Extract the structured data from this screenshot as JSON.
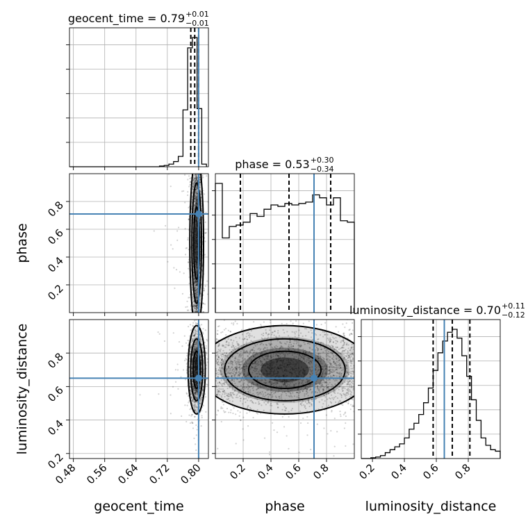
{
  "chart_data": {
    "type": "corner",
    "colors": {
      "truth": "#4682b4",
      "hist": "#000000",
      "grid": "#b0b0b0"
    },
    "parameters": [
      "geocent_time",
      "phase",
      "luminosity_distance"
    ],
    "truths": {
      "geocent_time": 0.8,
      "phase": 0.71,
      "luminosity_distance": 0.65
    },
    "grid": true,
    "diagonal": [
      {
        "param": "geocent_time",
        "title_main": "geocent_time = 0.79",
        "title_sup": "+0.01",
        "title_sub": "−0.01",
        "range": [
          0.47,
          0.825
        ],
        "quantiles": [
          0.78,
          0.79,
          0.8
        ],
        "bins": [
          0.7,
          0.712,
          0.724,
          0.736,
          0.748,
          0.76,
          0.772,
          0.784,
          0.796,
          0.808,
          0.82
        ],
        "counts": [
          0.005,
          0.01,
          0.02,
          0.04,
          0.08,
          0.44,
          0.92,
          1.0,
          0.45,
          0.02
        ],
        "xticks": [
          0.48,
          0.56,
          0.64,
          0.72,
          0.8
        ],
        "show_xticks": false
      },
      {
        "param": "phase",
        "title_main": "phase = 0.53",
        "title_sup": "+0.30",
        "title_sub": "−0.34",
        "range": [
          0.0,
          1.0
        ],
        "quantiles": [
          0.18,
          0.53,
          0.83
        ],
        "bins": [
          0.0,
          0.05,
          0.1,
          0.15,
          0.2,
          0.25,
          0.3,
          0.35,
          0.4,
          0.45,
          0.5,
          0.55,
          0.6,
          0.65,
          0.7,
          0.75,
          0.8,
          0.85,
          0.9,
          0.95,
          1.0
        ],
        "counts": [
          0.9,
          0.52,
          0.6,
          0.61,
          0.63,
          0.69,
          0.67,
          0.72,
          0.75,
          0.74,
          0.76,
          0.75,
          0.76,
          0.77,
          0.82,
          0.8,
          0.75,
          0.8,
          0.64,
          0.63
        ],
        "xticks": [
          0.2,
          0.4,
          0.6,
          0.8
        ],
        "show_xticks": false
      },
      {
        "param": "luminosity_distance",
        "title_main": "luminosity_distance = 0.70",
        "title_sup": "+0.11",
        "title_sub": "−0.12",
        "range": [
          0.13,
          1.0
        ],
        "quantiles": [
          0.58,
          0.7,
          0.81
        ],
        "bins": [
          0.13,
          0.16,
          0.19,
          0.22,
          0.25,
          0.28,
          0.31,
          0.34,
          0.37,
          0.4,
          0.43,
          0.46,
          0.49,
          0.52,
          0.55,
          0.58,
          0.61,
          0.64,
          0.67,
          0.7,
          0.73,
          0.76,
          0.79,
          0.82,
          0.85,
          0.88,
          0.91,
          0.94,
          0.97,
          1.0
        ],
        "counts": [
          0.0,
          0.0,
          0.005,
          0.01,
          0.02,
          0.04,
          0.06,
          0.08,
          0.1,
          0.14,
          0.2,
          0.24,
          0.3,
          0.38,
          0.48,
          0.6,
          0.72,
          0.8,
          0.86,
          0.88,
          0.82,
          0.7,
          0.56,
          0.4,
          0.26,
          0.14,
          0.09,
          0.06,
          0.05
        ],
        "xticks": [
          0.2,
          0.4,
          0.6,
          0.8
        ],
        "show_xticks": true,
        "xlabel": "luminosity_distance"
      }
    ],
    "panels": [
      {
        "id": "phase-vs-geocent_time",
        "x_param": "geocent_time",
        "y_param": "phase",
        "xrange": [
          0.47,
          0.825
        ],
        "yrange": [
          0.0,
          1.0
        ],
        "yticks": [
          0.2,
          0.4,
          0.6,
          0.8
        ],
        "ylabel": "phase",
        "show_xticks": false,
        "density_center": [
          0.795,
          0.5
        ],
        "density_spread": [
          0.008,
          0.6
        ]
      },
      {
        "id": "luminosity_distance-vs-geocent_time",
        "x_param": "geocent_time",
        "y_param": "luminosity_distance",
        "xrange": [
          0.47,
          0.825
        ],
        "yrange": [
          0.17,
          1.0
        ],
        "xticks": [
          0.48,
          0.56,
          0.64,
          0.72,
          0.8
        ],
        "yticks": [
          0.2,
          0.4,
          0.6,
          0.8
        ],
        "xlabel": "geocent_time",
        "ylabel": "luminosity_distance",
        "density_center": [
          0.795,
          0.7
        ],
        "density_spread": [
          0.01,
          0.12
        ]
      },
      {
        "id": "luminosity_distance-vs-phase",
        "x_param": "phase",
        "y_param": "luminosity_distance",
        "xrange": [
          0.0,
          1.0
        ],
        "yrange": [
          0.17,
          1.0
        ],
        "xticks": [
          0.2,
          0.4,
          0.6,
          0.8
        ],
        "xlabel": "phase",
        "show_yticks": false,
        "density_center": [
          0.5,
          0.7
        ],
        "density_spread": [
          0.55,
          0.12
        ]
      }
    ]
  }
}
